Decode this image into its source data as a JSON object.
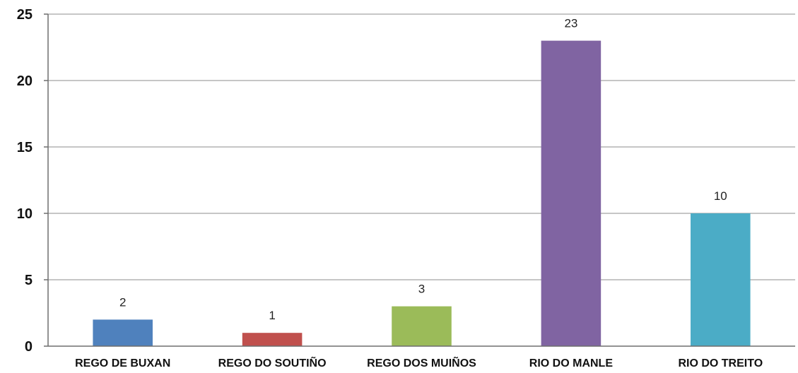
{
  "chart_data": {
    "type": "bar",
    "title": "",
    "xlabel": "",
    "ylabel": "",
    "categories": [
      "REGO DE BUXAN",
      "REGO DO SOUTIÑO",
      "REGO DOS MUIÑOS",
      "RIO DO MANLE",
      "RIO DO TREITO"
    ],
    "values": [
      2,
      1,
      3,
      23,
      10
    ],
    "colors": [
      "#4f81bd",
      "#c0504d",
      "#9bbb59",
      "#8064a2",
      "#4bacc6"
    ],
    "ylim": [
      0,
      25
    ],
    "yticks": [
      0,
      5,
      10,
      15,
      20,
      25
    ],
    "grid": true,
    "legend": "none",
    "data_labels": true
  }
}
